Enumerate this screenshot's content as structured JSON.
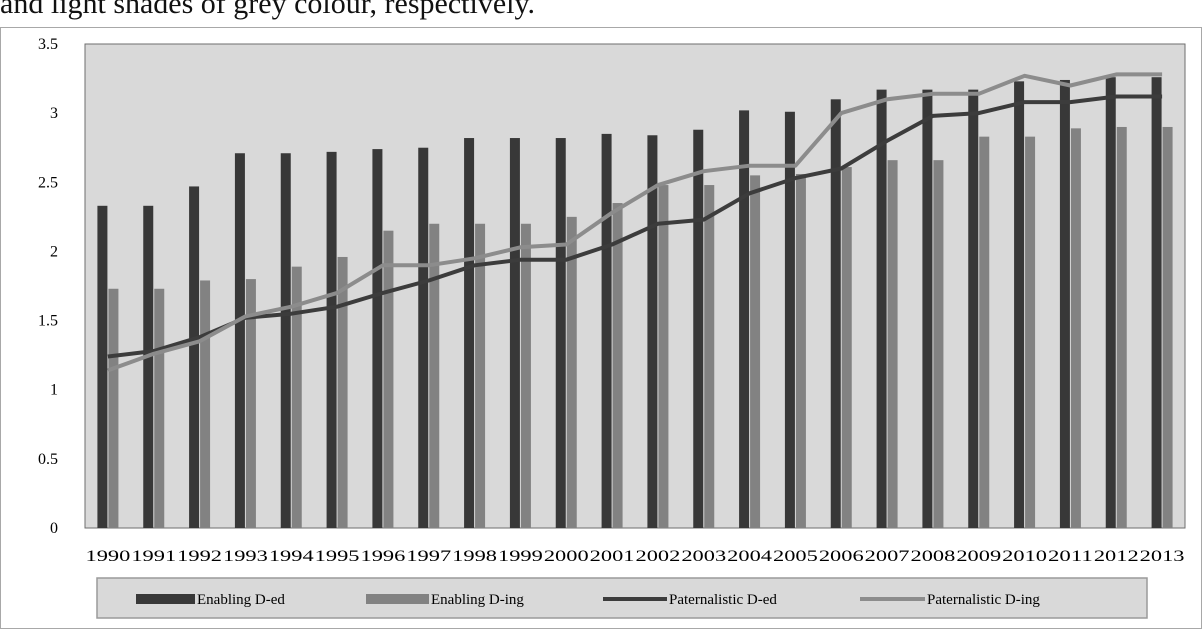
{
  "caption_fragment": "and light shades of grey colour, respectively.",
  "colors": {
    "plot_background": "#d9d9d9",
    "enabling_ded": "#383838",
    "enabling_ding": "#828282",
    "paternalistic_ded": "#3c3c3c",
    "paternalistic_ding": "#8c8c8c"
  },
  "chart_data": {
    "type": "bar",
    "title": "",
    "xlabel": "",
    "ylabel": "",
    "ylim": [
      0,
      3.5
    ],
    "yticks": [
      "0",
      "0.5",
      "1",
      "1.5",
      "2",
      "2.5",
      "3",
      "3.5"
    ],
    "grid": false,
    "legend_position": "bottom",
    "categories": [
      "1990",
      "1991",
      "1992",
      "1993",
      "1994",
      "1995",
      "1996",
      "1997",
      "1998",
      "1999",
      "2000",
      "2001",
      "2002",
      "2003",
      "2004",
      "2005",
      "2006",
      "2007",
      "2008",
      "2009",
      "2010",
      "2011",
      "2012",
      "2013"
    ],
    "series": [
      {
        "name": "Enabling D-ed",
        "kind": "bar",
        "values": [
          2.33,
          2.33,
          2.47,
          2.71,
          2.71,
          2.72,
          2.74,
          2.75,
          2.82,
          2.82,
          2.82,
          2.85,
          2.84,
          2.88,
          3.02,
          3.01,
          3.1,
          3.17,
          3.17,
          3.17,
          3.23,
          3.24,
          3.26,
          3.26
        ]
      },
      {
        "name": "Enabling D-ing",
        "kind": "bar",
        "values": [
          1.73,
          1.73,
          1.79,
          1.8,
          1.89,
          1.96,
          2.15,
          2.2,
          2.2,
          2.2,
          2.25,
          2.35,
          2.48,
          2.48,
          2.55,
          2.56,
          2.61,
          2.66,
          2.66,
          2.83,
          2.83,
          2.89,
          2.9,
          2.9
        ]
      },
      {
        "name": "Paternalistic D-ed",
        "kind": "line",
        "values": [
          1.24,
          1.28,
          1.38,
          1.52,
          1.55,
          1.6,
          1.7,
          1.79,
          1.9,
          1.94,
          1.94,
          2.05,
          2.2,
          2.23,
          2.42,
          2.53,
          2.6,
          2.8,
          2.98,
          3.0,
          3.08,
          3.08,
          3.12,
          3.12
        ]
      },
      {
        "name": "Paternalistic D-ing",
        "kind": "line",
        "values": [
          1.14,
          1.26,
          1.35,
          1.53,
          1.6,
          1.7,
          1.9,
          1.9,
          1.95,
          2.03,
          2.05,
          2.28,
          2.48,
          2.58,
          2.62,
          2.62,
          3.0,
          3.1,
          3.14,
          3.14,
          3.27,
          3.2,
          3.28,
          3.28
        ]
      }
    ]
  }
}
